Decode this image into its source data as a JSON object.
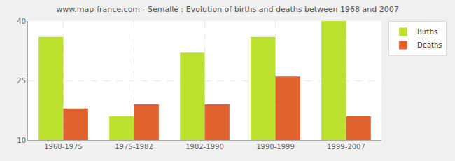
{
  "chart_data": {
    "type": "bar",
    "title": "www.map-france.com - Semallé : Evolution of births and deaths between 1968 and 2007",
    "categories": [
      "1968-1975",
      "1975-1982",
      "1982-1990",
      "1990-1999",
      "1999-2007"
    ],
    "series": [
      {
        "name": "Births",
        "color": "#bce12f",
        "values": [
          36,
          16,
          32,
          36,
          40
        ]
      },
      {
        "name": "Deaths",
        "color": "#e2622f",
        "values": [
          18,
          19,
          19,
          26,
          16
        ]
      }
    ],
    "ylim": [
      10,
      40
    ],
    "yticks": [
      10,
      25,
      40
    ],
    "grid": true,
    "legend": "top right"
  }
}
